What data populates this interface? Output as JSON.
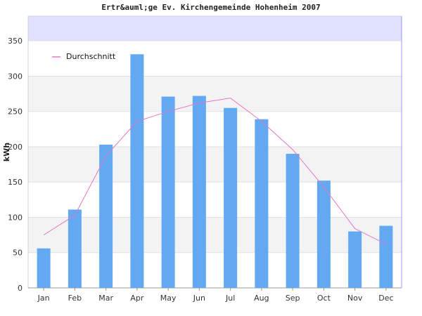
{
  "chart_data": {
    "type": "bar",
    "title": "Ertr&auml;ge Ev. Kirchengemeinde Hohenheim 2007",
    "xlabel": "",
    "ylabel": "kWh",
    "categories": [
      "Jan",
      "Feb",
      "Mar",
      "Apr",
      "May",
      "Jun",
      "Jul",
      "Aug",
      "Sep",
      "Oct",
      "Nov",
      "Dec"
    ],
    "ylim": [
      0,
      385
    ],
    "yticks": [
      0,
      50,
      100,
      150,
      200,
      250,
      300,
      350
    ],
    "grid": true,
    "legend_position": "top-left",
    "series": [
      {
        "kind": "bar",
        "values": [
          56,
          111,
          203,
          331,
          271,
          272,
          255,
          239,
          190,
          152,
          80,
          88
        ],
        "color": "#62a9f2"
      },
      {
        "kind": "line",
        "name": "Durchschnitt",
        "values": [
          75,
          103,
          187,
          236,
          250,
          262,
          269,
          236,
          196,
          143,
          84,
          62
        ],
        "color": "#e377c2"
      }
    ],
    "colors": {
      "top_band": "#e0e0ff",
      "band": "#f3f3f3",
      "grid": "#e2e2e2",
      "axis": "#999999",
      "right_edge": "#9999ff"
    }
  }
}
